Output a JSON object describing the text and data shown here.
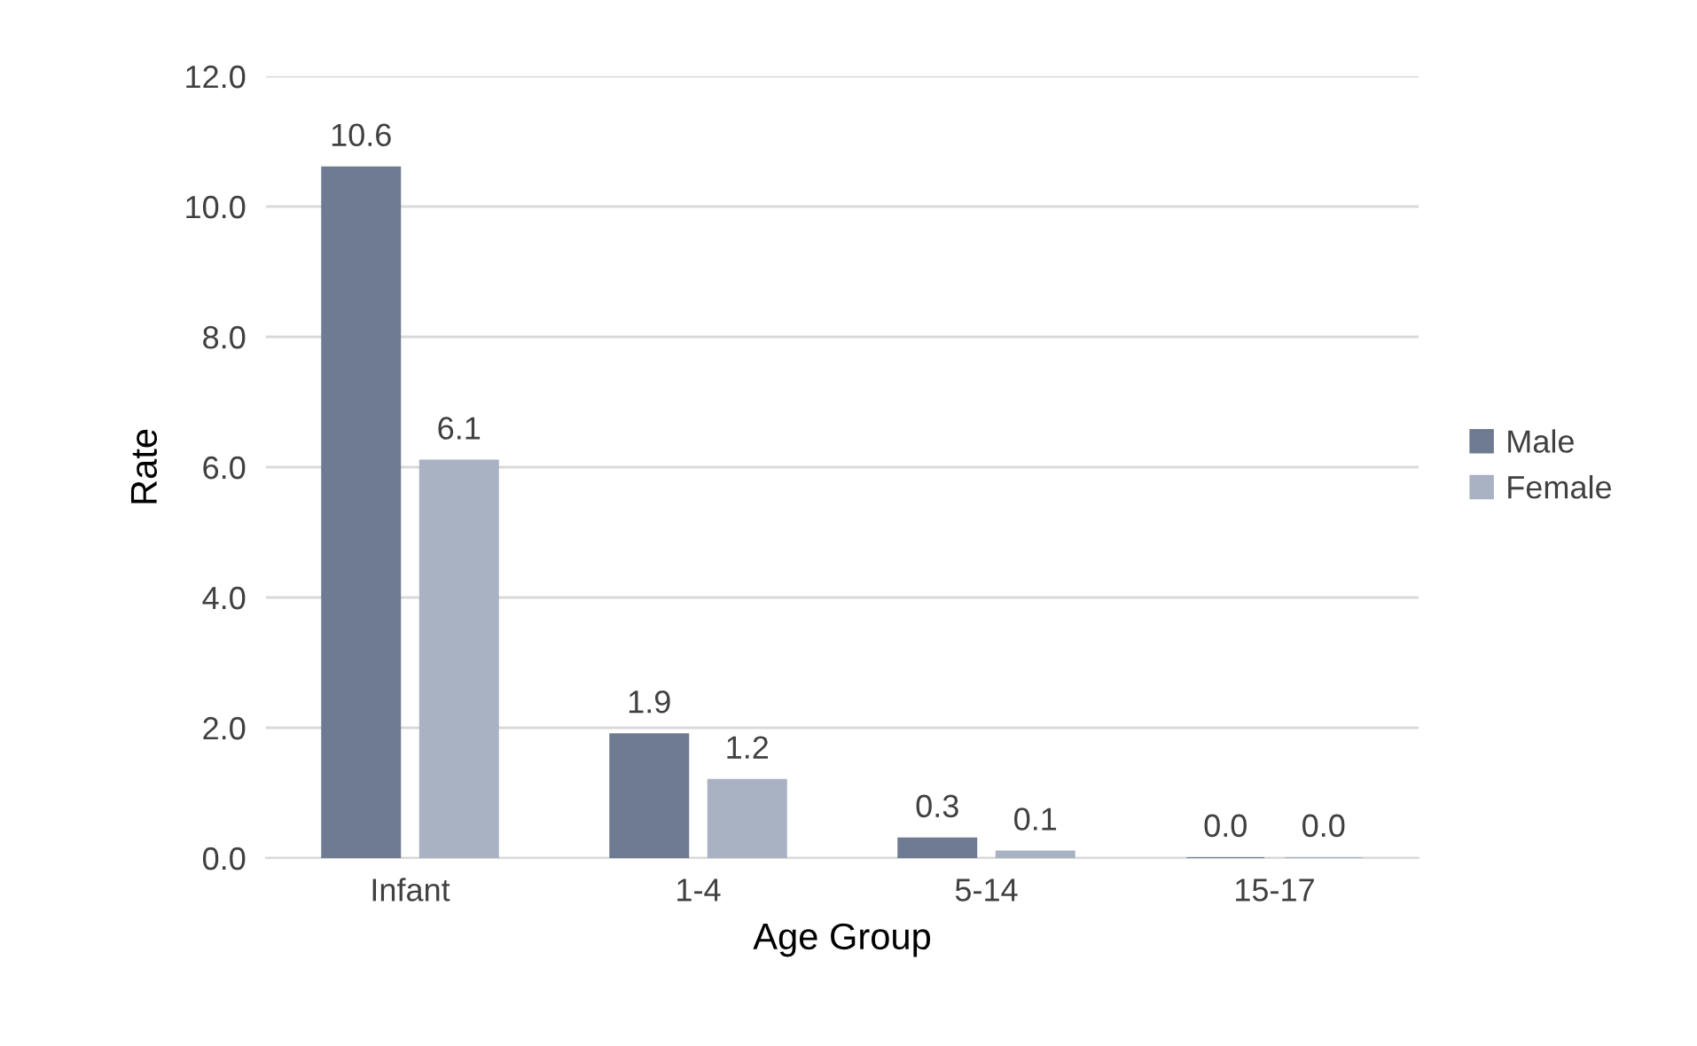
{
  "chart_data": {
    "type": "bar",
    "xlabel": "Age Group",
    "ylabel": "Rate",
    "categories": [
      "Infant",
      "1-4",
      "5-14",
      "15-17"
    ],
    "series": [
      {
        "name": "Male",
        "color": "#6e7b92",
        "values": [
          10.6,
          1.9,
          0.3,
          0.0
        ],
        "value_labels": [
          "10.6",
          "1.9",
          "0.3",
          "0.0"
        ]
      },
      {
        "name": "Female",
        "color": "#a9b2c3",
        "values": [
          6.1,
          1.2,
          0.1,
          0.0
        ],
        "value_labels": [
          "6.1",
          "1.2",
          "0.1",
          "0.0"
        ]
      }
    ],
    "ylim": [
      0,
      12
    ],
    "yticks": [
      {
        "value": 0,
        "label": "0.0"
      },
      {
        "value": 2,
        "label": "2.0"
      },
      {
        "value": 4,
        "label": "4.0"
      },
      {
        "value": 6,
        "label": "6.0"
      },
      {
        "value": 8,
        "label": "8.0"
      },
      {
        "value": 10,
        "label": "10.0"
      },
      {
        "value": 12,
        "label": "12.0"
      }
    ],
    "grid": "y",
    "legend": "right"
  }
}
